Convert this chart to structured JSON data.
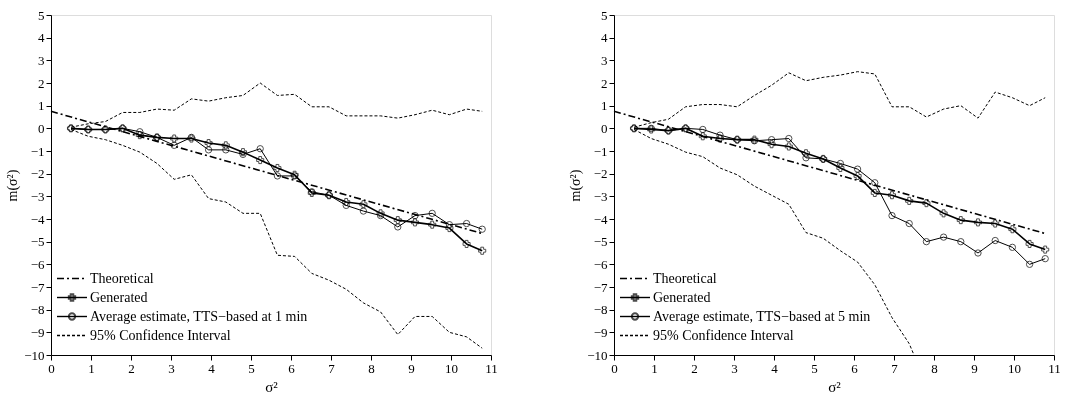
{
  "chart_data": [
    {
      "type": "line",
      "xlabel": "σ²",
      "ylabel": "m(σ²)",
      "xlim": [
        0,
        11
      ],
      "ylim": [
        -10,
        5
      ],
      "xticks": [
        0,
        1,
        2,
        3,
        4,
        5,
        6,
        7,
        8,
        9,
        10,
        11
      ],
      "yticks": [
        -10,
        -9,
        -8,
        -7,
        -6,
        -5,
        -4,
        -3,
        -2,
        -1,
        0,
        1,
        2,
        3,
        4,
        5
      ],
      "grid": false,
      "legend": "bottom left",
      "x": [
        0.5,
        0.93,
        1.36,
        1.79,
        2.22,
        2.65,
        3.08,
        3.51,
        3.94,
        4.37,
        4.8,
        5.23,
        5.66,
        6.09,
        6.52,
        6.95,
        7.38,
        7.81,
        8.24,
        8.67,
        9.1,
        9.53,
        9.96,
        10.39,
        10.78
      ],
      "series": [
        {
          "name": "Theoretical",
          "color": "#000000",
          "line_style": "dashdot",
          "marker": "none",
          "x": [
            0,
            10.78
          ],
          "values": [
            0.75,
            -4.64
          ]
        },
        {
          "name": "Generated",
          "color": "#000000",
          "line_style": "solid",
          "marker": "cross",
          "values": [
            0,
            -0.05,
            -0.05,
            0,
            -0.3,
            -0.4,
            -0.45,
            -0.45,
            -0.65,
            -0.75,
            -1.05,
            -1.4,
            -1.75,
            -2.05,
            -2.85,
            -2.95,
            -3.25,
            -3.35,
            -3.75,
            -4.05,
            -4.15,
            -4.25,
            -4.4,
            -5.1,
            -5.4
          ]
        },
        {
          "name": "Average estimate, TTS−based at 1 min",
          "color": "#000000",
          "line_style": "solid",
          "marker": "circle",
          "values": [
            0,
            -0.05,
            -0.05,
            0,
            -0.15,
            -0.4,
            -0.75,
            -0.4,
            -0.95,
            -0.95,
            -1.15,
            -0.9,
            -2.1,
            -2.1,
            -2.8,
            -2.95,
            -3.4,
            -3.65,
            -3.85,
            -4.35,
            -3.85,
            -3.75,
            -4.25,
            -4.2,
            -4.45
          ]
        },
        {
          "name": "95% Confidence Interval",
          "color": "#000000",
          "line_style": "dashed",
          "marker": "none",
          "values": [
            0.05,
            0.2,
            0.3,
            0.7,
            0.7,
            0.85,
            0.8,
            1.3,
            1.2,
            1.35,
            1.45,
            2.0,
            1.45,
            1.5,
            0.95,
            0.95,
            0.55,
            0.55,
            0.55,
            0.45,
            0.6,
            0.8,
            0.6,
            0.85,
            0.75
          ]
        },
        {
          "color": "#000000",
          "line_style": "dashed",
          "marker": "none",
          "values": [
            -0.05,
            -0.35,
            -0.5,
            -0.75,
            -1.05,
            -1.55,
            -2.25,
            -2.05,
            -3.1,
            -3.25,
            -3.75,
            -3.75,
            -5.6,
            -5.65,
            -6.4,
            -6.7,
            -7.1,
            -7.7,
            -8.1,
            -9.1,
            -8.3,
            -8.3,
            -9.0,
            -9.2,
            -9.7
          ]
        }
      ]
    },
    {
      "type": "line",
      "xlabel": "σ²",
      "ylabel": "m(σ²)",
      "xlim": [
        0,
        11
      ],
      "ylim": [
        -10,
        5
      ],
      "xticks": [
        0,
        1,
        2,
        3,
        4,
        5,
        6,
        7,
        8,
        9,
        10,
        11
      ],
      "yticks": [
        -10,
        -9,
        -8,
        -7,
        -6,
        -5,
        -4,
        -3,
        -2,
        -1,
        0,
        1,
        2,
        3,
        4,
        5
      ],
      "grid": false,
      "legend": "bottom left",
      "x": [
        0.5,
        0.93,
        1.36,
        1.79,
        2.22,
        2.65,
        3.08,
        3.51,
        3.94,
        4.37,
        4.8,
        5.23,
        5.66,
        6.09,
        6.52,
        6.95,
        7.38,
        7.81,
        8.24,
        8.67,
        9.1,
        9.53,
        9.96,
        10.39,
        10.78
      ],
      "series": [
        {
          "name": "Theoretical",
          "color": "#000000",
          "line_style": "dashdot",
          "marker": "none",
          "x": [
            0,
            10.78
          ],
          "values": [
            0.75,
            -4.64
          ]
        },
        {
          "name": "Generated",
          "color": "#000000",
          "line_style": "solid",
          "marker": "cross",
          "values": [
            0,
            -0.05,
            -0.1,
            0,
            -0.35,
            -0.45,
            -0.5,
            -0.5,
            -0.7,
            -0.8,
            -1.1,
            -1.35,
            -1.75,
            -2.1,
            -2.85,
            -2.95,
            -3.2,
            -3.3,
            -3.75,
            -4.05,
            -4.15,
            -4.2,
            -4.45,
            -5.1,
            -5.35
          ]
        },
        {
          "name": "Average estimate, TTS−based at 5 min",
          "color": "#000000",
          "line_style": "solid",
          "marker": "circle",
          "values": [
            0,
            0,
            -0.1,
            0,
            -0.05,
            -0.3,
            -0.5,
            -0.55,
            -0.5,
            -0.45,
            -1.3,
            -1.35,
            -1.55,
            -1.8,
            -2.4,
            -3.85,
            -4.2,
            -5.0,
            -4.8,
            -5.0,
            -5.5,
            -4.95,
            -5.25,
            -6.0,
            -5.75
          ]
        },
        {
          "name": "95% Confidence Interval",
          "color": "#000000",
          "line_style": "dashed",
          "marker": "none",
          "values": [
            0.05,
            0.25,
            0.4,
            0.95,
            1.05,
            1.05,
            0.95,
            1.45,
            1.9,
            2.45,
            2.1,
            2.25,
            2.35,
            2.5,
            2.4,
            0.95,
            0.95,
            0.5,
            0.85,
            1.0,
            0.45,
            1.6,
            1.35,
            1.0,
            1.35
          ]
        },
        {
          "color": "#000000",
          "line_style": "dashed",
          "marker": "none",
          "x": [
            0.5,
            0.93,
            1.36,
            1.79,
            2.22,
            2.65,
            3.08,
            3.51,
            3.94,
            4.37,
            4.8,
            5.23,
            5.66,
            6.09,
            6.52,
            6.95,
            7.38,
            7.5
          ],
          "values": [
            -0.05,
            -0.45,
            -0.7,
            -1.05,
            -1.25,
            -1.75,
            -2.05,
            -2.55,
            -2.95,
            -3.35,
            -4.6,
            -4.85,
            -5.4,
            -5.9,
            -6.9,
            -8.35,
            -9.5,
            -10
          ]
        }
      ]
    }
  ]
}
